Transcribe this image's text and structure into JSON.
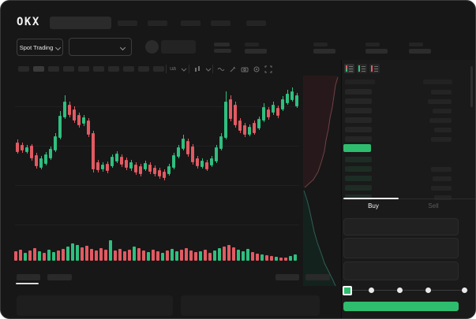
{
  "brand": {
    "logo_text": "OKX"
  },
  "subheader": {
    "market_selector_label": "Spot Trading"
  },
  "chart_toolbar": {
    "indicator_label": "ua"
  },
  "order_panel": {
    "buy_tab": "Buy",
    "sell_tab": "Sell"
  },
  "colors": {
    "up_green": "#2fbf7f",
    "down_red": "#e25a62",
    "last_price_green": "#2ebd6e",
    "buy_button_green": "#2ebd6e",
    "depth_ask_line": "#6e4146",
    "depth_ask_fill": "#2a1a1c",
    "depth_bid_line": "#2e5f53",
    "depth_bid_fill": "#14231f"
  },
  "skeleton": {
    "nav_item_count": 5,
    "toolbar_button_count": 10,
    "active_toolbar_index": 1,
    "stat_group_count": 4,
    "slider_dot_count": 5,
    "active_slider_dot": 0,
    "orderbook": {
      "header": [
        38,
        37
      ],
      "asks": [
        [
          34,
          26
        ],
        [
          34,
          30
        ],
        [
          34,
          24
        ],
        [
          34,
          28
        ],
        [
          34,
          22
        ],
        [
          34,
          26
        ]
      ],
      "bids": [
        [
          34,
          0
        ],
        [
          34,
          26
        ],
        [
          34,
          24
        ],
        [
          34,
          26
        ],
        [
          34,
          22
        ]
      ],
      "view_modes": [
        "split-book-icon",
        "bids-only-icon",
        "asks-only-icon"
      ]
    }
  },
  "chart_data": {
    "type": "candlestick",
    "units": "pixel-estimated (no axis labels visible in screenshot)",
    "candles": [
      [
        81,
        85,
        97,
        99,
        "r"
      ],
      [
        85,
        88,
        95,
        98,
        "r"
      ],
      [
        88,
        91,
        97,
        99,
        "g"
      ],
      [
        87,
        89,
        105,
        108,
        "r"
      ],
      [
        98,
        101,
        115,
        118,
        "r"
      ],
      [
        102,
        105,
        117,
        119,
        "g"
      ],
      [
        97,
        100,
        112,
        114,
        "g"
      ],
      [
        90,
        93,
        105,
        107,
        "g"
      ],
      [
        73,
        77,
        95,
        97,
        "g"
      ],
      [
        45,
        51,
        79,
        81,
        "g"
      ],
      [
        25,
        33,
        53,
        55,
        "g"
      ],
      [
        33,
        37,
        50,
        53,
        "r"
      ],
      [
        39,
        43,
        57,
        60,
        "r"
      ],
      [
        47,
        50,
        63,
        66,
        "r"
      ],
      [
        50,
        53,
        61,
        64,
        "g"
      ],
      [
        54,
        57,
        75,
        78,
        "r"
      ],
      [
        70,
        73,
        119,
        123,
        "r"
      ],
      [
        107,
        110,
        120,
        123,
        "r"
      ],
      [
        110,
        113,
        119,
        122,
        "g"
      ],
      [
        109,
        112,
        121,
        124,
        "r"
      ],
      [
        100,
        103,
        115,
        117,
        "g"
      ],
      [
        96,
        99,
        109,
        111,
        "g"
      ],
      [
        100,
        103,
        113,
        116,
        "r"
      ],
      [
        104,
        107,
        117,
        120,
        "r"
      ],
      [
        107,
        110,
        118,
        121,
        "g"
      ],
      [
        110,
        113,
        123,
        126,
        "r"
      ],
      [
        112,
        115,
        125,
        128,
        "r"
      ],
      [
        108,
        111,
        119,
        121,
        "g"
      ],
      [
        110,
        113,
        122,
        125,
        "r"
      ],
      [
        114,
        117,
        125,
        128,
        "r"
      ],
      [
        117,
        120,
        128,
        131,
        "r"
      ],
      [
        119,
        122,
        130,
        133,
        "r"
      ],
      [
        112,
        115,
        125,
        127,
        "g"
      ],
      [
        98,
        101,
        117,
        119,
        "g"
      ],
      [
        88,
        91,
        103,
        105,
        "g"
      ],
      [
        75,
        80,
        93,
        95,
        "g"
      ],
      [
        80,
        83,
        100,
        103,
        "r"
      ],
      [
        87,
        90,
        110,
        113,
        "r"
      ],
      [
        102,
        105,
        115,
        118,
        "r"
      ],
      [
        105,
        108,
        116,
        118,
        "g"
      ],
      [
        107,
        110,
        119,
        121,
        "r"
      ],
      [
        102,
        105,
        114,
        116,
        "g"
      ],
      [
        88,
        91,
        109,
        111,
        "g"
      ],
      [
        73,
        77,
        93,
        95,
        "g"
      ],
      [
        20,
        33,
        79,
        81,
        "g"
      ],
      [
        25,
        30,
        55,
        58,
        "r"
      ],
      [
        33,
        37,
        63,
        66,
        "r"
      ],
      [
        54,
        57,
        70,
        73,
        "r"
      ],
      [
        60,
        63,
        75,
        78,
        "r"
      ],
      [
        62,
        65,
        75,
        77,
        "g"
      ],
      [
        57,
        60,
        73,
        75,
        "r"
      ],
      [
        52,
        55,
        67,
        69,
        "g"
      ],
      [
        35,
        40,
        57,
        59,
        "g"
      ],
      [
        40,
        43,
        53,
        56,
        "r"
      ],
      [
        33,
        37,
        47,
        50,
        "g"
      ],
      [
        38,
        41,
        51,
        54,
        "r"
      ],
      [
        26,
        30,
        43,
        45,
        "g"
      ],
      [
        18,
        23,
        35,
        37,
        "g"
      ],
      [
        15,
        20,
        31,
        33,
        "g"
      ],
      [
        22,
        25,
        39,
        41,
        "g"
      ]
    ],
    "volume": [
      [
        12,
        "r"
      ],
      [
        14,
        "r"
      ],
      [
        10,
        "g"
      ],
      [
        13,
        "r"
      ],
      [
        16,
        "r"
      ],
      [
        12,
        "g"
      ],
      [
        10,
        "r"
      ],
      [
        14,
        "g"
      ],
      [
        11,
        "g"
      ],
      [
        13,
        "r"
      ],
      [
        15,
        "r"
      ],
      [
        18,
        "g"
      ],
      [
        22,
        "g"
      ],
      [
        20,
        "g"
      ],
      [
        17,
        "r"
      ],
      [
        19,
        "r"
      ],
      [
        15,
        "r"
      ],
      [
        13,
        "r"
      ],
      [
        16,
        "r"
      ],
      [
        14,
        "r"
      ],
      [
        26,
        "g"
      ],
      [
        13,
        "r"
      ],
      [
        15,
        "r"
      ],
      [
        12,
        "r"
      ],
      [
        14,
        "r"
      ],
      [
        18,
        "g"
      ],
      [
        16,
        "r"
      ],
      [
        13,
        "r"
      ],
      [
        11,
        "g"
      ],
      [
        14,
        "r"
      ],
      [
        12,
        "r"
      ],
      [
        10,
        "g"
      ],
      [
        13,
        "r"
      ],
      [
        15,
        "g"
      ],
      [
        12,
        "g"
      ],
      [
        14,
        "r"
      ],
      [
        16,
        "r"
      ],
      [
        13,
        "r"
      ],
      [
        11,
        "r"
      ],
      [
        12,
        "g"
      ],
      [
        14,
        "r"
      ],
      [
        10,
        "r"
      ],
      [
        13,
        "g"
      ],
      [
        16,
        "g"
      ],
      [
        18,
        "r"
      ],
      [
        20,
        "r"
      ],
      [
        17,
        "r"
      ],
      [
        14,
        "g"
      ],
      [
        12,
        "g"
      ],
      [
        15,
        "g"
      ],
      [
        11,
        "r"
      ],
      [
        9,
        "r"
      ],
      [
        8,
        "g"
      ],
      [
        7,
        "r"
      ],
      [
        6,
        "r"
      ],
      [
        5,
        "g"
      ],
      [
        4,
        "r"
      ],
      [
        4,
        "r"
      ],
      [
        6,
        "g"
      ],
      [
        8,
        "g"
      ]
    ],
    "depth": {
      "asks_steps": [
        [
          44,
          2
        ],
        [
          41,
          12
        ],
        [
          39,
          26
        ],
        [
          37,
          40
        ],
        [
          34,
          54
        ],
        [
          32,
          68
        ],
        [
          29,
          82
        ],
        [
          27,
          96
        ],
        [
          23,
          110
        ],
        [
          19,
          122
        ],
        [
          13,
          132
        ],
        [
          2,
          142
        ]
      ],
      "bids_steps": [
        [
          1,
          146
        ],
        [
          5,
          158
        ],
        [
          8,
          170
        ],
        [
          11,
          184
        ],
        [
          14,
          198
        ],
        [
          18,
          212
        ],
        [
          23,
          226
        ],
        [
          27,
          238
        ],
        [
          33,
          250
        ],
        [
          38,
          260
        ],
        [
          41,
          267
        ]
      ]
    }
  }
}
